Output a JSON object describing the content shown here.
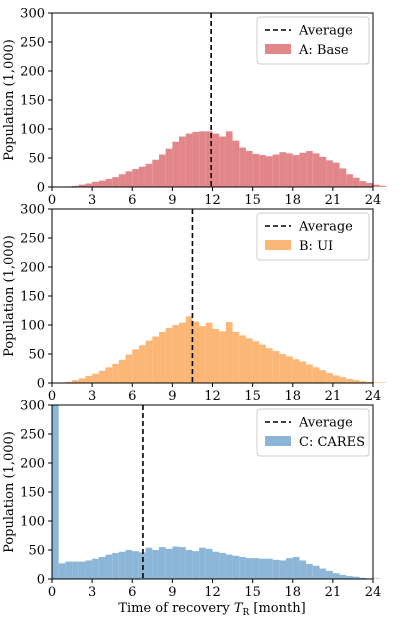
{
  "chart_data": [
    {
      "type": "histogram",
      "series_name": "A: Base",
      "color": "#e3868a",
      "average_x": 11.9,
      "average_label": "Average",
      "xlim": [
        0,
        24
      ],
      "ylim": [
        0,
        300
      ],
      "xticks": [
        0,
        3,
        6,
        9,
        12,
        15,
        18,
        21,
        24
      ],
      "yticks": [
        0,
        50,
        100,
        150,
        200,
        250,
        300
      ],
      "ylabel": "Population (1,000)",
      "xlabel": "",
      "bin_width": 0.5,
      "bin_start": 1.0,
      "values": [
        1,
        2,
        4,
        6,
        9,
        11,
        14,
        17,
        22,
        27,
        31,
        35,
        40,
        47,
        56,
        66,
        78,
        87,
        92,
        95,
        96,
        96,
        92,
        87,
        96,
        80,
        68,
        62,
        57,
        55,
        53,
        56,
        60,
        58,
        55,
        59,
        62,
        58,
        52,
        46,
        42,
        32,
        22,
        16,
        10,
        7,
        4,
        2
      ]
    },
    {
      "type": "histogram",
      "series_name": "B: UI",
      "color": "#fcb675",
      "average_x": 10.5,
      "average_label": "Average",
      "xlim": [
        0,
        24
      ],
      "ylim": [
        0,
        300
      ],
      "xticks": [
        0,
        3,
        6,
        9,
        12,
        15,
        18,
        21,
        24
      ],
      "yticks": [
        0,
        50,
        100,
        150,
        200,
        250,
        300
      ],
      "ylabel": "Population (1,000)",
      "xlabel": "",
      "bin_width": 0.5,
      "bin_start": 1.0,
      "values": [
        2,
        5,
        8,
        12,
        16,
        21,
        27,
        33,
        40,
        49,
        58,
        65,
        73,
        80,
        88,
        95,
        100,
        104,
        115,
        106,
        98,
        104,
        93,
        89,
        105,
        88,
        82,
        77,
        72,
        66,
        60,
        55,
        50,
        46,
        41,
        37,
        32,
        27,
        22,
        17,
        13,
        10,
        7,
        5,
        3,
        2,
        1,
        1
      ]
    },
    {
      "type": "histogram",
      "series_name": "C: CARES",
      "color": "#8cb6d8",
      "average_x": 6.8,
      "average_label": "Average",
      "xlim": [
        0,
        24
      ],
      "ylim": [
        0,
        300
      ],
      "xticks": [
        0,
        3,
        6,
        9,
        12,
        15,
        18,
        21,
        24
      ],
      "yticks": [
        0,
        50,
        100,
        150,
        200,
        250,
        300
      ],
      "ylabel": "Population (1,000)",
      "xlabel": "Time of recovery T_R [month]",
      "bin_width": 0.5,
      "bin_start": 0.0,
      "values": [
        300,
        27,
        30,
        30,
        30,
        32,
        35,
        38,
        42,
        45,
        47,
        50,
        48,
        46,
        54,
        50,
        55,
        52,
        56,
        55,
        50,
        48,
        54,
        52,
        47,
        45,
        42,
        40,
        38,
        36,
        36,
        35,
        35,
        33,
        32,
        36,
        38,
        32,
        26,
        23,
        18,
        14,
        10,
        7,
        5,
        4,
        2,
        1,
        1
      ]
    }
  ],
  "xlabel_text": "Time of recovery ",
  "xlabel_symbol": "T",
  "xlabel_sub": "R",
  "xlabel_unit": " [month]"
}
